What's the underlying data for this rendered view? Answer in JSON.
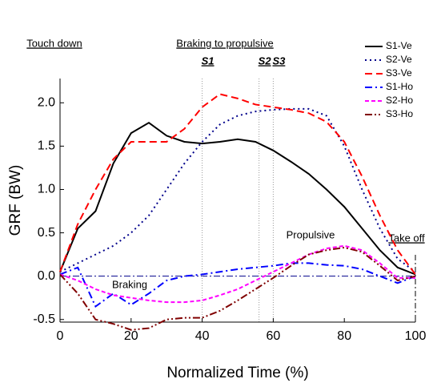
{
  "chart_data": {
    "type": "line",
    "x_label": "Normalized Time (%)",
    "y_label": "GRF (BW)",
    "x": [
      0,
      5,
      10,
      15,
      20,
      25,
      30,
      35,
      40,
      45,
      50,
      55,
      60,
      65,
      70,
      75,
      80,
      85,
      90,
      95,
      100
    ],
    "series": [
      {
        "name": "S1-Ve",
        "color": "#000000",
        "style": "solid",
        "values": [
          0.05,
          0.55,
          0.75,
          1.3,
          1.65,
          1.77,
          1.62,
          1.55,
          1.53,
          1.55,
          1.58,
          1.55,
          1.45,
          1.32,
          1.18,
          1.0,
          0.8,
          0.55,
          0.3,
          0.1,
          0.02
        ]
      },
      {
        "name": "S2-Ve",
        "color": "#00008b",
        "style": "dot",
        "values": [
          0.05,
          0.15,
          0.25,
          0.35,
          0.5,
          0.7,
          1.0,
          1.3,
          1.55,
          1.75,
          1.85,
          1.9,
          1.92,
          1.93,
          1.93,
          1.85,
          1.5,
          1.0,
          0.55,
          0.2,
          0.05
        ]
      },
      {
        "name": "S3-Ve",
        "color": "#ff0000",
        "style": "dash",
        "values": [
          0.05,
          0.6,
          1.0,
          1.35,
          1.55,
          1.55,
          1.55,
          1.7,
          1.95,
          2.1,
          2.05,
          1.98,
          1.95,
          1.92,
          1.88,
          1.78,
          1.55,
          1.15,
          0.7,
          0.3,
          0.02
        ]
      },
      {
        "name": "S1-Ho",
        "color": "#0000ff",
        "style": "dashdot",
        "values": [
          0.02,
          0.1,
          -0.35,
          -0.2,
          -0.33,
          -0.2,
          -0.05,
          0.0,
          0.02,
          0.05,
          0.08,
          0.1,
          0.12,
          0.15,
          0.15,
          0.13,
          0.12,
          0.08,
          0.0,
          -0.08,
          0.0
        ]
      },
      {
        "name": "S2-Ho",
        "color": "#ff00ff",
        "style": "shortdash",
        "values": [
          0.02,
          -0.05,
          -0.15,
          -0.22,
          -0.25,
          -0.28,
          -0.3,
          -0.3,
          -0.28,
          -0.22,
          -0.15,
          -0.05,
          0.05,
          0.15,
          0.25,
          0.32,
          0.35,
          0.3,
          0.15,
          -0.02,
          -0.02
        ]
      },
      {
        "name": "S3-Ho",
        "color": "#800000",
        "style": "dashdotdot",
        "values": [
          0.02,
          -0.2,
          -0.5,
          -0.55,
          -0.62,
          -0.6,
          -0.5,
          -0.48,
          -0.48,
          -0.4,
          -0.28,
          -0.15,
          -0.02,
          0.12,
          0.25,
          0.3,
          0.33,
          0.28,
          0.12,
          -0.05,
          0.0
        ]
      }
    ],
    "xlim": [
      0,
      100
    ],
    "xticks": [
      0,
      20,
      40,
      60,
      80,
      100
    ],
    "ylim": [
      -0.53,
      2.28
    ],
    "yticks": [
      {
        "value": -0.5,
        "label": "-0.5"
      },
      {
        "value": 0,
        "label": "0.0"
      },
      {
        "value": 0.5,
        "label": "0.5"
      },
      {
        "value": 1,
        "label": "1.0"
      },
      {
        "value": 1.5,
        "label": "1.5"
      },
      {
        "value": 2,
        "label": "2.0"
      }
    ],
    "phase_lines": [
      {
        "label": "S1",
        "x": 40
      },
      {
        "label": "S2",
        "x": 56
      },
      {
        "label": "S3",
        "x": 60
      }
    ],
    "take_off_x": 100,
    "annotations": {
      "touch_down": "Touch down",
      "braking_to_propulsive": "Braking to propulsive",
      "take_off": "Take off",
      "braking": "Braking",
      "propulsive": "Propulsive"
    },
    "legend": "top-right"
  }
}
